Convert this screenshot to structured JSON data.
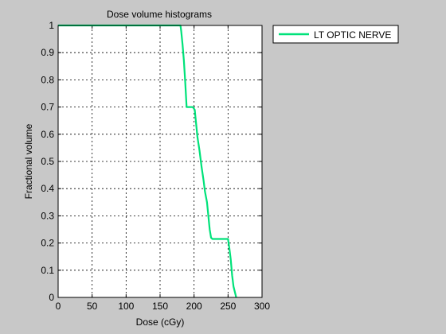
{
  "chart_data": {
    "type": "line",
    "title": "Dose volume histograms",
    "xlabel": "Dose (cGy)",
    "ylabel": "Fractional volume",
    "xlim": [
      0,
      300
    ],
    "ylim": [
      0,
      1
    ],
    "xticks": [
      0,
      50,
      100,
      150,
      200,
      250,
      300
    ],
    "yticks": [
      0,
      0.1,
      0.2,
      0.3,
      0.4,
      0.5,
      0.6,
      0.7,
      0.8,
      0.9,
      1
    ],
    "grid": true,
    "legend_position": "outside-right-top",
    "series": [
      {
        "name": "LT OPTIC NERVE",
        "color": "#00e27a",
        "x": [
          0,
          180,
          181,
          183,
          185,
          187,
          189,
          198,
          201,
          203,
          205,
          208,
          211,
          214,
          216,
          219,
          221,
          223,
          225,
          227,
          250,
          252,
          254,
          256,
          258,
          260,
          262
        ],
        "y": [
          1,
          1,
          0.98,
          0.93,
          0.87,
          0.79,
          0.7,
          0.7,
          0.69,
          0.64,
          0.59,
          0.54,
          0.48,
          0.43,
          0.39,
          0.35,
          0.3,
          0.25,
          0.22,
          0.215,
          0.215,
          0.18,
          0.14,
          0.08,
          0.04,
          0.02,
          0
        ]
      }
    ]
  }
}
